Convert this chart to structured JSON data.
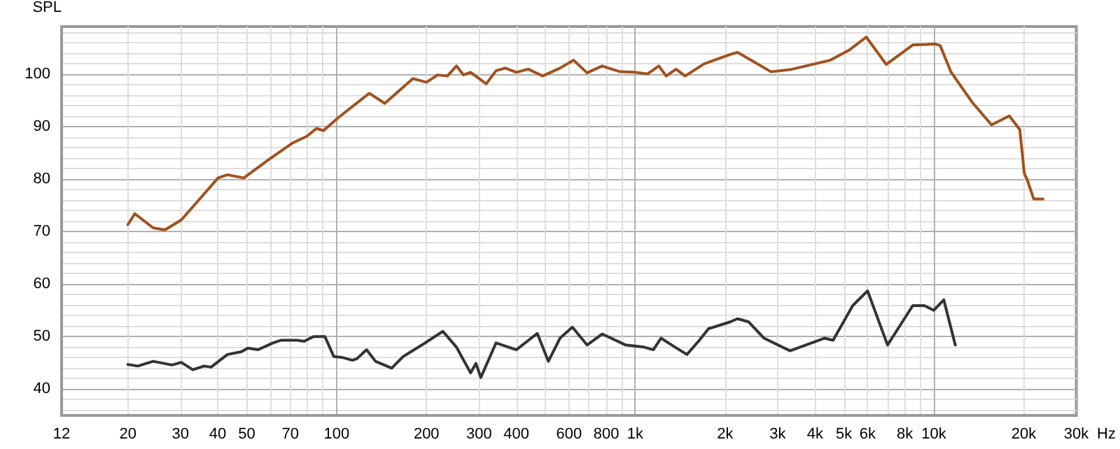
{
  "chart_data": {
    "type": "line",
    "ylabel": "SPL",
    "xlabel": "Hz",
    "log": "x",
    "grid": true,
    "marker": "none",
    "line_style": "solid",
    "xlim": [
      12,
      30000
    ],
    "ylim": [
      35,
      109
    ],
    "xticks": [
      12,
      20,
      30,
      40,
      50,
      70,
      100,
      200,
      300,
      400,
      600,
      800,
      {
        "value": 1000,
        "label": "1k"
      },
      {
        "value": 2000,
        "label": "2k"
      },
      {
        "value": 3000,
        "label": "3k"
      },
      {
        "value": 4000,
        "label": "4k"
      },
      {
        "value": 5000,
        "label": "5k"
      },
      {
        "value": 6000,
        "label": "6k"
      },
      {
        "value": 8000,
        "label": "8k"
      },
      {
        "value": 10000,
        "label": "10k"
      },
      {
        "value": 20000,
        "label": "20k"
      },
      {
        "value": 30000,
        "label": "30k"
      }
    ],
    "yticks": [
      40,
      50,
      60,
      70,
      80,
      90,
      100
    ],
    "series": [
      {
        "color": "#a0521e",
        "x": [
          20,
          21.1,
          24.3,
          26.6,
          30.2,
          34.8,
          40.1,
          43.1,
          48.9,
          59.3,
          71,
          79.4,
          85.6,
          90.4,
          101,
          113,
          128.7,
          145,
          180,
          200,
          218,
          235,
          252,
          266,
          281,
          317,
          342,
          367,
          400,
          438,
          490,
          560,
          622,
          690,
          775,
          890,
          1000,
          1100,
          1200,
          1270,
          1370,
          1470,
          1700,
          2080,
          2200,
          2850,
          3300,
          4500,
          5200,
          5940,
          6930,
          8500,
          9500,
          10100,
          10500,
          11400,
          13400,
          15600,
          17900,
          19400,
          20100,
          20500,
          21600,
          23200
        ],
        "values": [
          71.3,
          73.4,
          70.7,
          70.3,
          72.2,
          76.2,
          80.2,
          80.8,
          80.2,
          83.7,
          86.8,
          88.1,
          89.6,
          89.2,
          91.6,
          93.8,
          96.3,
          94.4,
          99.1,
          98.4,
          99.8,
          99.6,
          101.5,
          99.8,
          100.3,
          98.1,
          100.6,
          101.1,
          100.3,
          100.9,
          99.6,
          101.1,
          102.6,
          100.2,
          101.5,
          100.4,
          100.3,
          100,
          101.5,
          99.6,
          100.9,
          99.6,
          101.9,
          103.7,
          104.1,
          100.4,
          100.8,
          102.6,
          104.5,
          107,
          101.8,
          105.5,
          105.6,
          105.7,
          105.4,
          100.4,
          94.7,
          90.3,
          92,
          89.4,
          81,
          80,
          76.2,
          76.2
        ]
      },
      {
        "color": "#333333",
        "x": [
          20,
          21.6,
          24.3,
          28.1,
          30.2,
          33,
          36,
          38,
          43.1,
          47.9,
          50.5,
          54.5,
          61.2,
          65,
          73.8,
          77.9,
          83.7,
          91.4,
          97.9,
          105,
          113,
          117,
          126,
          135,
          153,
          167,
          193,
          227,
          252,
          281,
          293,
          304,
          342,
          400,
          470,
          512,
          560,
          616,
          690,
          775,
          930,
          1070,
          1150,
          1220,
          1360,
          1490,
          1640,
          1760,
          2080,
          2200,
          2400,
          2700,
          3300,
          4300,
          4600,
          5350,
          6000,
          7000,
          8500,
          9300,
          10000,
          10800,
          11800
        ],
        "values": [
          44.7,
          44.4,
          45.3,
          44.6,
          45.1,
          43.7,
          44.4,
          44.2,
          46.6,
          47.1,
          47.8,
          47.5,
          48.8,
          49.3,
          49.3,
          49.1,
          50,
          50,
          46.2,
          46,
          45.5,
          45.8,
          47.5,
          45.3,
          44,
          46.2,
          48.4,
          51,
          48,
          43.1,
          44.9,
          42.2,
          48.8,
          47.5,
          50.6,
          45.3,
          49.7,
          51.8,
          48.4,
          50.5,
          48.4,
          48,
          47.5,
          49.7,
          48,
          46.6,
          49.3,
          51.5,
          52.8,
          53.4,
          52.8,
          49.7,
          47.3,
          49.7,
          49.3,
          55.9,
          58.7,
          48.4,
          55.9,
          55.9,
          55,
          57,
          48.4
        ]
      }
    ]
  }
}
